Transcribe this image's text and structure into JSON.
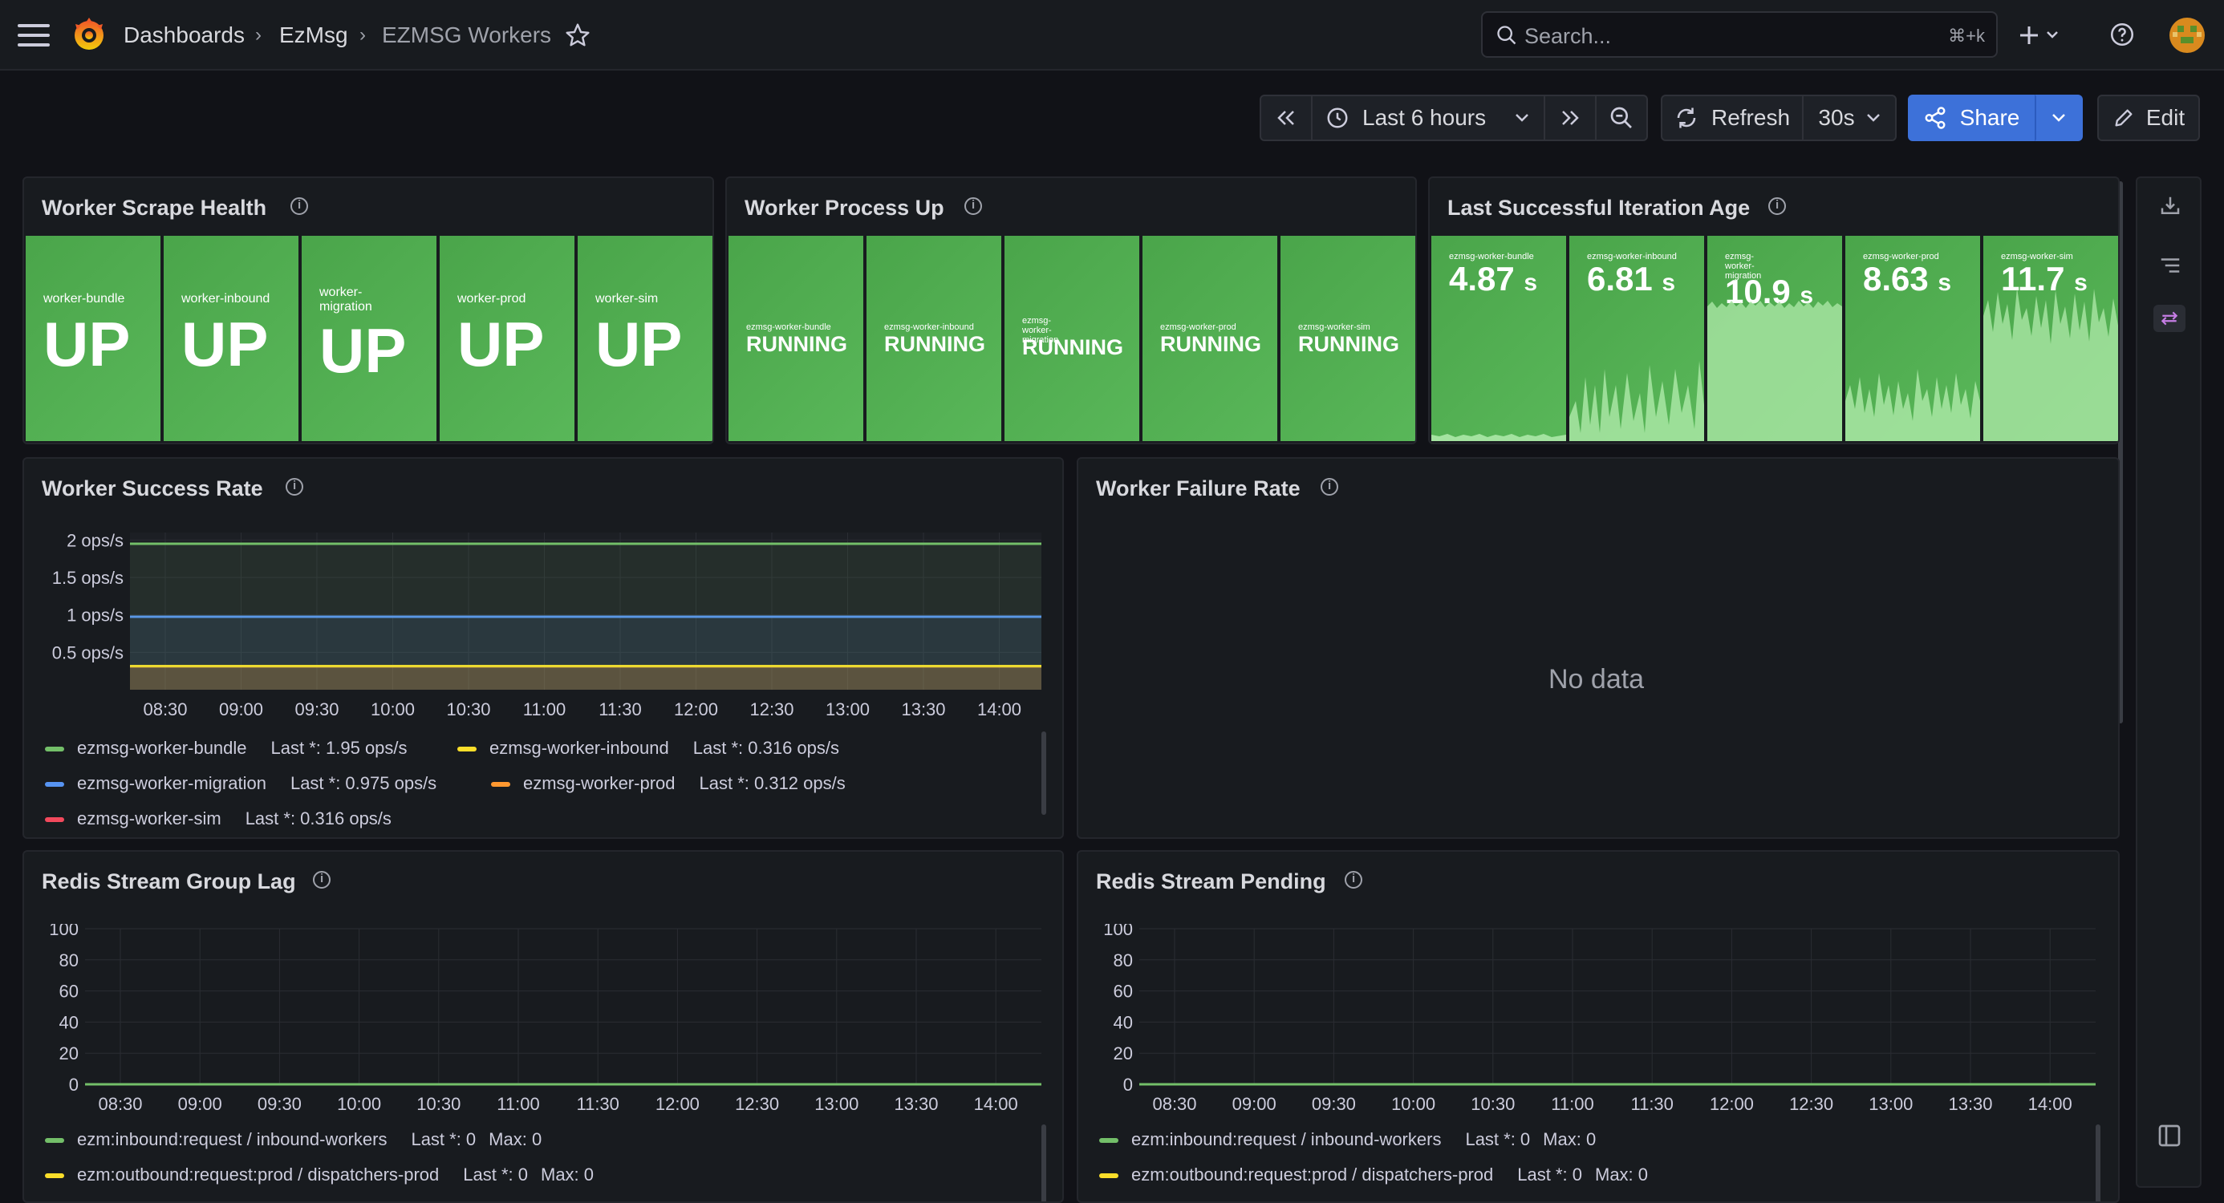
{
  "breadcrumb": {
    "dashboards": "Dashboards",
    "folder": "EzMsg",
    "current": "EZMSG Workers"
  },
  "search": {
    "placeholder": "Search...",
    "shortcut": "⌘+k"
  },
  "toolbar": {
    "time_range": "Last 6 hours",
    "refresh": "Refresh",
    "interval": "30s",
    "share": "Share",
    "edit": "Edit"
  },
  "colors": {
    "green": "#73bf69",
    "yellow": "#fade2a",
    "blue": "#5794f2",
    "orange": "#ff9830",
    "red": "#f2495c",
    "accent": "#3d71d9",
    "tile": "#52ad52"
  },
  "scrape_health": {
    "title": "Worker Scrape Health",
    "tiles": [
      {
        "name": "worker-bundle",
        "value": "UP"
      },
      {
        "name": "worker-inbound",
        "value": "UP"
      },
      {
        "name": "worker-migration",
        "value": "UP"
      },
      {
        "name": "worker-prod",
        "value": "UP"
      },
      {
        "name": "worker-sim",
        "value": "UP"
      }
    ]
  },
  "process_up": {
    "title": "Worker Process Up",
    "tiles": [
      {
        "name": "ezmsg-worker-bundle",
        "value": "RUNNING"
      },
      {
        "name": "ezmsg-worker-inbound",
        "value": "RUNNING"
      },
      {
        "name": "ezmsg-worker-migration",
        "value": "RUNNING"
      },
      {
        "name": "ezmsg-worker-prod",
        "value": "RUNNING"
      },
      {
        "name": "ezmsg-worker-sim",
        "value": "RUNNING"
      }
    ]
  },
  "iteration_age": {
    "title": "Last Successful Iteration Age",
    "tiles": [
      {
        "name": "ezmsg-worker-bundle",
        "value": "4.87",
        "unit": "s"
      },
      {
        "name": "ezmsg-worker-inbound",
        "value": "6.81",
        "unit": "s"
      },
      {
        "name": "ezmsg-worker-migration",
        "value": "10.9",
        "unit": "s"
      },
      {
        "name": "ezmsg-worker-prod",
        "value": "8.63",
        "unit": "s"
      },
      {
        "name": "ezmsg-worker-sim",
        "value": "11.7",
        "unit": "s"
      }
    ]
  },
  "success_rate": {
    "title": "Worker Success Rate",
    "legend": [
      {
        "name": "ezmsg-worker-bundle",
        "last": "Last *: 1.95 ops/s"
      },
      {
        "name": "ezmsg-worker-inbound",
        "last": "Last *: 0.316 ops/s"
      },
      {
        "name": "ezmsg-worker-migration",
        "last": "Last *: 0.975 ops/s"
      },
      {
        "name": "ezmsg-worker-prod",
        "last": "Last *: 0.312 ops/s"
      },
      {
        "name": "ezmsg-worker-sim",
        "last": "Last *: 0.316 ops/s"
      }
    ]
  },
  "failure_rate": {
    "title": "Worker Failure Rate",
    "empty": "No data"
  },
  "group_lag": {
    "title": "Redis Stream Group Lag",
    "legend": [
      {
        "name": "ezm:inbound:request / inbound-workers",
        "last": "Last *: 0",
        "max": "Max: 0"
      },
      {
        "name": "ezm:outbound:request:prod / dispatchers-prod",
        "last": "Last *: 0",
        "max": "Max: 0"
      }
    ]
  },
  "pending": {
    "title": "Redis Stream Pending",
    "legend": [
      {
        "name": "ezm:inbound:request / inbound-workers",
        "last": "Last *: 0",
        "max": "Max: 0"
      },
      {
        "name": "ezm:outbound:request:prod / dispatchers-prod",
        "last": "Last *: 0",
        "max": "Max: 0"
      }
    ]
  },
  "chart_data": [
    {
      "type": "line",
      "title": "Worker Success Rate",
      "x": [
        "08:30",
        "09:00",
        "09:30",
        "10:00",
        "10:30",
        "11:00",
        "11:30",
        "12:00",
        "12:30",
        "13:00",
        "13:30",
        "14:00"
      ],
      "yticks": [
        "0.5 ops/s",
        "1 ops/s",
        "1.5 ops/s",
        "2 ops/s"
      ],
      "ylim": [
        0,
        2.1
      ],
      "series": [
        {
          "name": "ezmsg-worker-bundle",
          "values": [
            1.95,
            1.95,
            1.95,
            1.95,
            1.95,
            1.95,
            1.95,
            1.95,
            1.95,
            1.95,
            1.95,
            1.95
          ]
        },
        {
          "name": "ezmsg-worker-inbound",
          "values": [
            0.316,
            0.316,
            0.316,
            0.316,
            0.316,
            0.316,
            0.316,
            0.316,
            0.316,
            0.316,
            0.316,
            0.316
          ]
        },
        {
          "name": "ezmsg-worker-migration",
          "values": [
            0.975,
            0.975,
            0.975,
            0.975,
            0.975,
            0.975,
            0.975,
            0.975,
            0.975,
            0.975,
            0.975,
            0.975
          ]
        },
        {
          "name": "ezmsg-worker-prod",
          "values": [
            0.312,
            0.312,
            0.312,
            0.312,
            0.312,
            0.312,
            0.312,
            0.312,
            0.312,
            0.312,
            0.312,
            0.312
          ]
        },
        {
          "name": "ezmsg-worker-sim",
          "values": [
            0.316,
            0.316,
            0.316,
            0.316,
            0.316,
            0.316,
            0.316,
            0.316,
            0.316,
            0.316,
            0.316,
            0.316
          ]
        }
      ]
    },
    {
      "type": "line",
      "title": "Redis Stream Group Lag",
      "x": [
        "08:30",
        "09:00",
        "09:30",
        "10:00",
        "10:30",
        "11:00",
        "11:30",
        "12:00",
        "12:30",
        "13:00",
        "13:30",
        "14:00"
      ],
      "yticks": [
        "0",
        "20",
        "40",
        "60",
        "80",
        "100"
      ],
      "ylim": [
        0,
        100
      ],
      "series": [
        {
          "name": "ezm:inbound:request / inbound-workers",
          "values": [
            0,
            0,
            0,
            0,
            0,
            0,
            0,
            0,
            0,
            0,
            0,
            0
          ]
        },
        {
          "name": "ezm:outbound:request:prod / dispatchers-prod",
          "values": [
            0,
            0,
            0,
            0,
            0,
            0,
            0,
            0,
            0,
            0,
            0,
            0
          ]
        }
      ]
    },
    {
      "type": "line",
      "title": "Redis Stream Pending",
      "x": [
        "08:30",
        "09:00",
        "09:30",
        "10:00",
        "10:30",
        "11:00",
        "11:30",
        "12:00",
        "12:30",
        "13:00",
        "13:30",
        "14:00"
      ],
      "yticks": [
        "0",
        "20",
        "40",
        "60",
        "80",
        "100"
      ],
      "ylim": [
        0,
        100
      ],
      "series": [
        {
          "name": "ezm:inbound:request / inbound-workers",
          "values": [
            0,
            0,
            0,
            0,
            0,
            0,
            0,
            0,
            0,
            0,
            0,
            0
          ]
        },
        {
          "name": "ezm:outbound:request:prod / dispatchers-prod",
          "values": [
            0,
            0,
            0,
            0,
            0,
            0,
            0,
            0,
            0,
            0,
            0,
            0
          ]
        }
      ]
    }
  ]
}
